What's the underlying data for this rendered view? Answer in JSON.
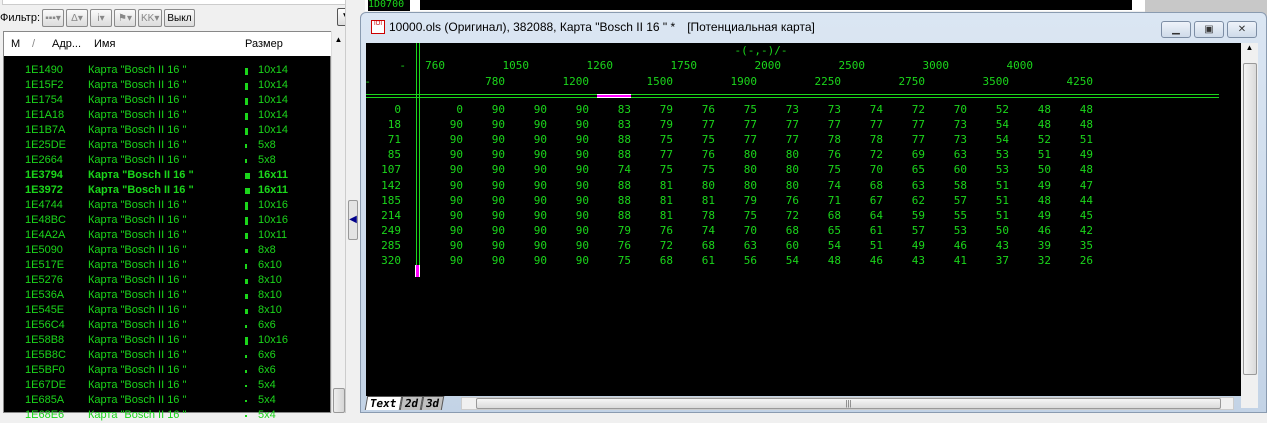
{
  "left_panel": {
    "filter_label": "Фильтр:",
    "filter_off_label": "Выкл",
    "columns": [
      "M",
      "/",
      "Адр...",
      "Имя",
      "Размер"
    ],
    "rows": [
      {
        "addr": "1E1490",
        "name": "Карта \"Bosch II 16 \"",
        "size": "10x14",
        "bold": false
      },
      {
        "addr": "1E15F2",
        "name": "Карта \"Bosch II 16 \"",
        "size": "10x14",
        "bold": false
      },
      {
        "addr": "1E1754",
        "name": "Карта \"Bosch II 16 \"",
        "size": "10x14",
        "bold": false
      },
      {
        "addr": "1E1A18",
        "name": "Карта \"Bosch II 16 \"",
        "size": "10x14",
        "bold": false
      },
      {
        "addr": "1E1B7A",
        "name": "Карта \"Bosch II 16 \"",
        "size": "10x14",
        "bold": false
      },
      {
        "addr": "1E25DE",
        "name": "Карта \"Bosch II 16 \"",
        "size": "5x8",
        "bold": false
      },
      {
        "addr": "1E2664",
        "name": "Карта \"Bosch II 16 \"",
        "size": "5x8",
        "bold": false
      },
      {
        "addr": "1E3794",
        "name": "Карта \"Bosch II 16 \"",
        "size": "16x11",
        "bold": true
      },
      {
        "addr": "1E3972",
        "name": "Карта \"Bosch II 16 \"",
        "size": "16x11",
        "bold": true
      },
      {
        "addr": "1E4744",
        "name": "Карта \"Bosch II 16 \"",
        "size": "10x16",
        "bold": false
      },
      {
        "addr": "1E48BC",
        "name": "Карта \"Bosch II 16 \"",
        "size": "10x16",
        "bold": false
      },
      {
        "addr": "1E4A2A",
        "name": "Карта \"Bosch II 16 \"",
        "size": "10x11",
        "bold": false
      },
      {
        "addr": "1E5090",
        "name": "Карта \"Bosch II 16 \"",
        "size": "8x8",
        "bold": false
      },
      {
        "addr": "1E517E",
        "name": "Карта \"Bosch II 16 \"",
        "size": "6x10",
        "bold": false
      },
      {
        "addr": "1E5276",
        "name": "Карта \"Bosch II 16 \"",
        "size": "8x10",
        "bold": false
      },
      {
        "addr": "1E536A",
        "name": "Карта \"Bosch II 16 \"",
        "size": "8x10",
        "bold": false
      },
      {
        "addr": "1E545E",
        "name": "Карта \"Bosch II 16 \"",
        "size": "8x10",
        "bold": false
      },
      {
        "addr": "1E56C4",
        "name": "Карта \"Bosch II 16 \"",
        "size": "6x6",
        "bold": false
      },
      {
        "addr": "1E58B8",
        "name": "Карта \"Bosch II 16 \"",
        "size": "10x16",
        "bold": false
      },
      {
        "addr": "1E5B8C",
        "name": "Карта \"Bosch II 16 \"",
        "size": "6x6",
        "bold": false
      },
      {
        "addr": "1E5BF0",
        "name": "Карта \"Bosch II 16 \"",
        "size": "6x6",
        "bold": false
      },
      {
        "addr": "1E67DE",
        "name": "Карта \"Bosch II 16 \"",
        "size": "5x4",
        "bold": false
      },
      {
        "addr": "1E685A",
        "name": "Карта \"Bosch II 16 \"",
        "size": "5x4",
        "bold": false
      },
      {
        "addr": "1E68E6",
        "name": "Карта \"Bosch II 16 \"",
        "size": "5x4",
        "bold": false
      }
    ]
  },
  "background_window": {
    "addr": "1D0700"
  },
  "window": {
    "title": "10000.ols (Оригинал), 382088, Карта \"Bosch II 16 \" *",
    "subtitle": "[Потенциальная карта]",
    "axis_label": "-(-,-)/-",
    "x_axis_name": "-",
    "y_axis_name": "-",
    "x_axis": [
      760,
      780,
      1050,
      1200,
      1260,
      1500,
      1750,
      1900,
      2000,
      2250,
      2500,
      2750,
      3000,
      3500,
      4000,
      4250
    ],
    "y_axis": [
      0,
      18,
      71,
      85,
      107,
      142,
      185,
      214,
      249,
      285,
      320
    ],
    "values": [
      [
        0,
        90,
        90,
        90,
        83,
        79,
        76,
        75,
        73,
        73,
        74,
        72,
        70,
        52,
        48,
        48
      ],
      [
        90,
        90,
        90,
        90,
        83,
        79,
        77,
        77,
        77,
        77,
        77,
        77,
        73,
        54,
        48,
        48
      ],
      [
        90,
        90,
        90,
        90,
        88,
        75,
        75,
        77,
        77,
        78,
        78,
        77,
        73,
        54,
        52,
        51
      ],
      [
        90,
        90,
        90,
        90,
        88,
        77,
        76,
        80,
        80,
        76,
        72,
        69,
        63,
        53,
        51,
        49
      ],
      [
        90,
        90,
        90,
        90,
        74,
        75,
        75,
        80,
        80,
        75,
        70,
        65,
        60,
        53,
        50,
        48
      ],
      [
        90,
        90,
        90,
        90,
        88,
        81,
        80,
        80,
        80,
        74,
        68,
        63,
        58,
        51,
        49,
        47
      ],
      [
        90,
        90,
        90,
        90,
        88,
        81,
        81,
        79,
        76,
        71,
        67,
        62,
        57,
        51,
        48,
        44
      ],
      [
        90,
        90,
        90,
        90,
        88,
        81,
        78,
        75,
        72,
        68,
        64,
        59,
        55,
        51,
        49,
        45
      ],
      [
        90,
        90,
        90,
        90,
        79,
        76,
        74,
        70,
        68,
        65,
        61,
        57,
        53,
        50,
        46,
        42
      ],
      [
        90,
        90,
        90,
        90,
        76,
        72,
        68,
        63,
        60,
        54,
        51,
        49,
        46,
        43,
        39,
        35
      ],
      [
        90,
        90,
        90,
        90,
        75,
        68,
        61,
        56,
        54,
        48,
        46,
        43,
        41,
        37,
        32,
        26
      ]
    ],
    "tabs": [
      "Text",
      "2d",
      "3d"
    ],
    "active_tab": "Text"
  },
  "colors": {
    "text_green": "#1bd61b",
    "cursor_magenta": "#ff00ff",
    "background": "#000000"
  }
}
